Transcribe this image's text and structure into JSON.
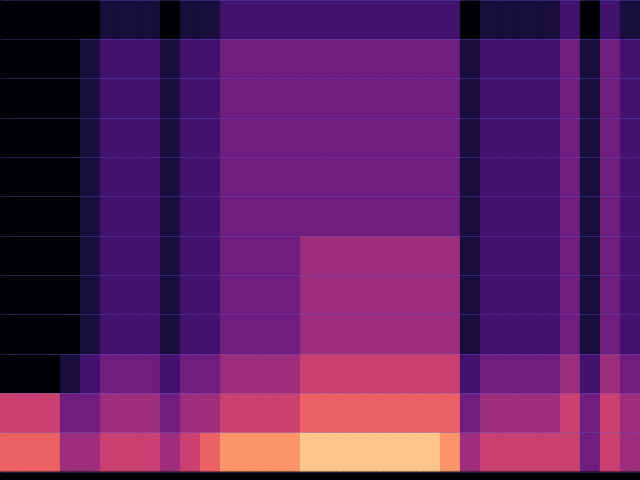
{
  "chart_data": {
    "type": "heatmap",
    "x_bins": [
      0,
      1,
      2,
      3,
      4,
      5,
      6,
      7,
      8,
      9,
      10,
      11,
      12,
      13,
      14,
      15,
      16,
      17,
      18,
      19,
      20,
      21,
      22,
      23,
      24,
      25,
      26,
      27,
      28,
      29,
      30,
      31,
      32
    ],
    "y_bins": [
      0,
      1,
      2,
      3,
      4,
      5,
      6,
      7,
      8,
      9,
      10,
      11,
      12
    ],
    "xlim": [
      0,
      32
    ],
    "ylim": [
      0,
      12
    ],
    "xticks": [
      0,
      32
    ],
    "yticks": [
      0,
      1,
      2,
      3,
      4,
      5,
      6,
      7,
      8,
      9,
      10,
      11,
      12
    ],
    "zlim": [
      0,
      9
    ],
    "grid": true,
    "tick_labels": false,
    "cells": [
      [
        6,
        6,
        6,
        4,
        4,
        5,
        5,
        5,
        4,
        5,
        6,
        7,
        7,
        7,
        7,
        8,
        8,
        8,
        8,
        8,
        8,
        8,
        7,
        4,
        5,
        5,
        5,
        5,
        5,
        3,
        5,
        4
      ],
      [
        5,
        5,
        5,
        3,
        3,
        4,
        4,
        4,
        3,
        4,
        4,
        5,
        5,
        5,
        5,
        6,
        6,
        6,
        6,
        6,
        6,
        6,
        6,
        3,
        4,
        4,
        4,
        4,
        5,
        3,
        5,
        4
      ],
      [
        0,
        0,
        0,
        1,
        2,
        3,
        3,
        3,
        2,
        3,
        3,
        4,
        4,
        4,
        4,
        5,
        5,
        5,
        5,
        5,
        5,
        5,
        5,
        2,
        3,
        3,
        3,
        3,
        4,
        2,
        4,
        3
      ],
      [
        0,
        0,
        0,
        0,
        1,
        2,
        2,
        2,
        1,
        2,
        2,
        3,
        3,
        3,
        3,
        4,
        4,
        4,
        4,
        4,
        4,
        4,
        4,
        1,
        2,
        2,
        2,
        2,
        3,
        1,
        3,
        2
      ],
      [
        0,
        0,
        0,
        0,
        1,
        2,
        2,
        2,
        1,
        2,
        2,
        3,
        3,
        3,
        3,
        4,
        4,
        4,
        4,
        4,
        4,
        4,
        4,
        1,
        2,
        2,
        2,
        2,
        3,
        1,
        3,
        2
      ],
      [
        0,
        0,
        0,
        0,
        1,
        2,
        2,
        2,
        1,
        2,
        2,
        3,
        3,
        3,
        3,
        4,
        4,
        4,
        4,
        4,
        4,
        4,
        4,
        1,
        2,
        2,
        2,
        2,
        3,
        1,
        3,
        2
      ],
      [
        0,
        0,
        0,
        0,
        1,
        2,
        2,
        2,
        1,
        2,
        2,
        3,
        3,
        3,
        3,
        3,
        3,
        3,
        3,
        3,
        3,
        3,
        3,
        1,
        2,
        2,
        2,
        2,
        3,
        1,
        3,
        2
      ],
      [
        0,
        0,
        0,
        0,
        1,
        2,
        2,
        2,
        1,
        2,
        2,
        3,
        3,
        3,
        3,
        3,
        3,
        3,
        3,
        3,
        3,
        3,
        3,
        1,
        2,
        2,
        2,
        2,
        3,
        1,
        3,
        2
      ],
      [
        0,
        0,
        0,
        0,
        1,
        2,
        2,
        2,
        1,
        2,
        2,
        3,
        3,
        3,
        3,
        3,
        3,
        3,
        3,
        3,
        3,
        3,
        3,
        1,
        2,
        2,
        2,
        2,
        3,
        1,
        3,
        2
      ],
      [
        0,
        0,
        0,
        0,
        1,
        2,
        2,
        2,
        1,
        2,
        2,
        3,
        3,
        3,
        3,
        3,
        3,
        3,
        3,
        3,
        3,
        3,
        3,
        1,
        2,
        2,
        2,
        2,
        3,
        1,
        3,
        2
      ],
      [
        0,
        0,
        0,
        0,
        1,
        2,
        2,
        2,
        1,
        2,
        2,
        3,
        3,
        3,
        3,
        3,
        3,
        3,
        3,
        3,
        3,
        3,
        3,
        1,
        2,
        2,
        2,
        2,
        3,
        1,
        3,
        2
      ],
      [
        0,
        0,
        0,
        0,
        0,
        1,
        1,
        1,
        0,
        1,
        1,
        2,
        2,
        2,
        2,
        2,
        2,
        2,
        2,
        2,
        2,
        2,
        2,
        0,
        1,
        1,
        1,
        1,
        2,
        0,
        2,
        1
      ]
    ]
  }
}
